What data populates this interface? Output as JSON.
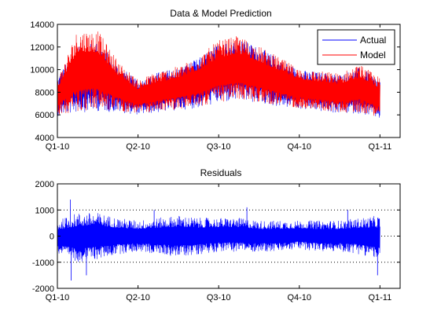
{
  "chart_data": [
    {
      "type": "line",
      "title": "Data & Model Prediction",
      "xlabel": "",
      "ylabel": "",
      "xlim": [
        0,
        4.25
      ],
      "ylim": [
        4000,
        14000
      ],
      "yticks": [
        4000,
        6000,
        8000,
        10000,
        12000,
        14000
      ],
      "xticks": [
        {
          "pos": 0,
          "label": "Q1-10"
        },
        {
          "pos": 1,
          "label": "Q2-10"
        },
        {
          "pos": 2,
          "label": "Q3-10"
        },
        {
          "pos": 3,
          "label": "Q4-10"
        },
        {
          "pos": 4,
          "label": "Q1-11"
        }
      ],
      "grid": false,
      "legend": "top-right",
      "envelope_note": "quarterly x positions; daily min/max envelope of hourly series",
      "series": [
        {
          "name": "Actual",
          "color": "#0000ff",
          "x": [
            0,
            0.25,
            0.5,
            0.75,
            1,
            1.25,
            1.5,
            1.75,
            2,
            2.25,
            2.5,
            2.75,
            3,
            3.25,
            3.5,
            3.75,
            4
          ],
          "low": [
            5900,
            6200,
            6300,
            6200,
            6000,
            6200,
            6400,
            6600,
            7000,
            7200,
            7000,
            6700,
            6500,
            6300,
            6100,
            6100,
            5600
          ],
          "high": [
            9400,
            12000,
            12500,
            10500,
            9000,
            9800,
            10200,
            11000,
            12400,
            12800,
            12000,
            11000,
            10000,
            9800,
            9600,
            10200,
            9200
          ]
        },
        {
          "name": "Model",
          "color": "#ff0000",
          "x": [
            0,
            0.25,
            0.5,
            0.75,
            1,
            1.25,
            1.5,
            1.75,
            2,
            2.25,
            2.5,
            2.75,
            3,
            3.25,
            3.5,
            3.75,
            4
          ],
          "low": [
            6000,
            6300,
            6400,
            6300,
            6100,
            6300,
            6500,
            6700,
            7100,
            7300,
            7100,
            6800,
            6600,
            6400,
            6200,
            6200,
            5800
          ],
          "high": [
            9200,
            13600,
            13500,
            10800,
            9100,
            9900,
            10300,
            11200,
            12600,
            13000,
            12100,
            11100,
            10100,
            9900,
            9700,
            10500,
            9300
          ]
        }
      ]
    },
    {
      "type": "line",
      "title": "Residuals",
      "xlabel": "",
      "ylabel": "",
      "xlim": [
        0,
        4.25
      ],
      "ylim": [
        -2000,
        2000
      ],
      "yticks": [
        -2000,
        -1000,
        0,
        1000,
        2000
      ],
      "ytick_labels": [
        "-2000",
        "-1000",
        "0",
        "1000",
        "2000"
      ],
      "xticks": [
        {
          "pos": 0,
          "label": "Q1-10"
        },
        {
          "pos": 1,
          "label": "Q2-10"
        },
        {
          "pos": 2,
          "label": "Q3-10"
        },
        {
          "pos": 3,
          "label": "Q4-10"
        },
        {
          "pos": 4,
          "label": "Q1-11"
        }
      ],
      "grid": "dotted horizontal at y ticks",
      "series": [
        {
          "color": "#0000ff",
          "x": [
            0,
            0.25,
            0.5,
            0.75,
            1,
            1.25,
            1.5,
            1.75,
            2,
            2.25,
            2.5,
            2.75,
            3,
            3.25,
            3.5,
            3.75,
            4
          ],
          "low": [
            -700,
            -1000,
            -900,
            -700,
            -600,
            -700,
            -800,
            -700,
            -600,
            -600,
            -600,
            -600,
            -500,
            -600,
            -600,
            -700,
            -900
          ],
          "high": [
            600,
            900,
            900,
            700,
            600,
            700,
            800,
            700,
            700,
            700,
            600,
            600,
            600,
            600,
            600,
            700,
            800
          ]
        }
      ],
      "spikes": [
        {
          "x": 0.16,
          "y": 1400
        },
        {
          "x": 0.17,
          "y": -1700
        },
        {
          "x": 0.36,
          "y": -1500
        },
        {
          "x": 1.2,
          "y": 1000
        },
        {
          "x": 2.35,
          "y": 1100
        },
        {
          "x": 3.6,
          "y": 1000
        },
        {
          "x": 3.97,
          "y": -1500
        }
      ]
    }
  ]
}
